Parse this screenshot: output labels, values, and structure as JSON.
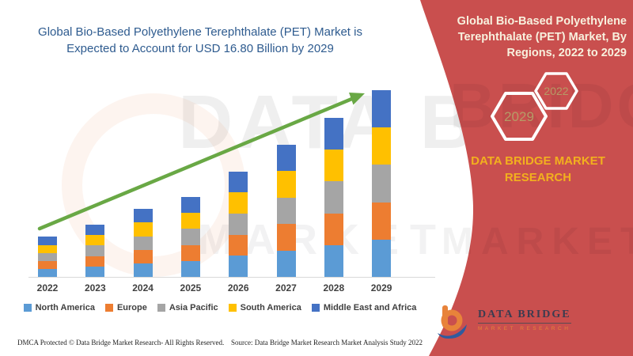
{
  "left": {
    "title_lines": [
      "Global Bio-Based Polyethylene Terephthalate (PET) Market is",
      "Expected to Account for USD 16.80 Billion by 2029"
    ],
    "title_color": "#2E5B8F",
    "footer_left": "DMCA Protected © Data Bridge Market Research- All Rights Reserved.",
    "footer_source": "Source: Data Bridge Market Research Market Analysis Study 2022"
  },
  "right_panel": {
    "bg_color": "#C94F4E",
    "title_lines": [
      "Global Bio-Based Polyethylene",
      "Terephthalate (PET) Market, By",
      "Regions, 2022 to 2029"
    ],
    "title_color": "#F8F1DE",
    "hexagon_front_label": "2029",
    "hexagon_back_label": "2022",
    "hexagon_label_color": "#B69B66",
    "brand_lines": [
      "DATA BRIDGE MARKET",
      "RESEARCH"
    ],
    "brand_color": "#F2B01E",
    "logo_name": "DATA BRIDGE",
    "logo_tagline": "MARKET RESEARCH"
  },
  "watermark": {
    "line1": "DATA BRI",
    "line2": "MARKET R",
    "band_line1": "BRIDGE",
    "band_line2": "MARKET"
  },
  "chart_data": {
    "type": "bar",
    "stacked": true,
    "title": "Global Bio-Based Polyethylene Terephthalate (PET) Market, By Regions, 2022 to 2029",
    "units": "USD Billion",
    "categories": [
      "2022",
      "2023",
      "2024",
      "2025",
      "2026",
      "2027",
      "2028",
      "2029"
    ],
    "series": [
      {
        "name": "North America",
        "color": "#5B9BD5",
        "values": [
          0.72,
          0.94,
          1.22,
          1.44,
          1.9,
          2.38,
          2.86,
          3.36
        ]
      },
      {
        "name": "Europe",
        "color": "#ED7D31",
        "values": [
          0.72,
          0.94,
          1.22,
          1.44,
          1.9,
          2.38,
          2.86,
          3.36
        ]
      },
      {
        "name": "Asia Pacific",
        "color": "#A5A5A5",
        "values": [
          0.72,
          0.94,
          1.22,
          1.44,
          1.9,
          2.38,
          2.86,
          3.36
        ]
      },
      {
        "name": "South America",
        "color": "#FFC000",
        "values": [
          0.72,
          0.94,
          1.22,
          1.44,
          1.9,
          2.38,
          2.86,
          3.36
        ]
      },
      {
        "name": "Middle East and Africa",
        "color": "#4472C4",
        "values": [
          0.72,
          0.94,
          1.22,
          1.44,
          1.9,
          2.38,
          2.86,
          3.36
        ]
      }
    ],
    "totals": [
      3.6,
      4.7,
      6.1,
      7.2,
      9.5,
      11.9,
      14.3,
      16.8
    ],
    "final_value_label": "USD 16.80 Billion by 2029",
    "ylim": [
      0,
      17
    ],
    "grid": false,
    "y_axis_shown": false,
    "legend_position": "bottom",
    "trend_arrow": true,
    "trend_arrow_color": "#69A845",
    "axis_line_color": "#D9D9D9",
    "x_label_color": "#404040"
  }
}
